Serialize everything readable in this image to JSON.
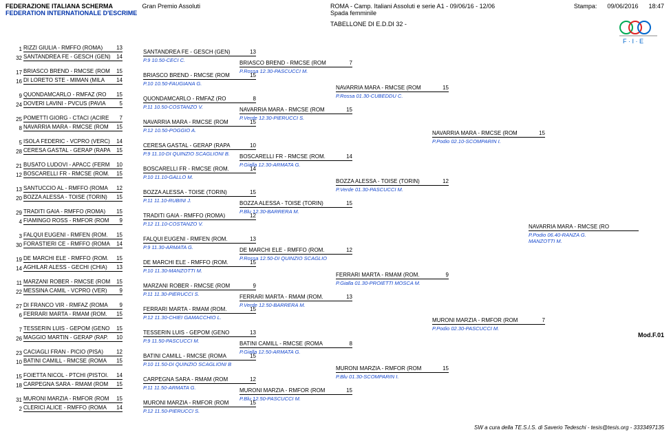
{
  "header": {
    "fed_it": "FEDERAZIONE ITALIANA SCHERMA",
    "gp": "Gran Premio Assoluti",
    "event": "ROMA - Camp. Italiani Assoluti e serie A1 - 09/06/16 - 12/06",
    "stampa_label": "Stampa:",
    "stampa_date": "09/06/2016",
    "stampa_time": "18:47",
    "fed_en": "FEDERATION INTERNATIONALE D'ESCRIME",
    "weapon": "Spada femminile",
    "tableau": "TABELLONE DI E.D.DI 32 -"
  },
  "layout": {
    "c0_gap": 12,
    "c0_block": 34,
    "c1_start": 6,
    "c1_block": 68,
    "c2_start": 22,
    "c2_block": 136,
    "c3_start": 58,
    "c3_block": 272,
    "c4_start": 124
  },
  "col0": [
    {
      "s1": "1",
      "n1": "RIZZI GIULIA - RMFFO (ROMA)",
      "v1": "13",
      "s2": "32",
      "n2": "SANTANDREA FE - GESCH (GEN)",
      "v2": "14"
    },
    {
      "s1": "17",
      "n1": "BRIASCO BREND - RMCSE (ROM",
      "v1": "15",
      "s2": "16",
      "n2": "DI LORETO STE - MIMAN (MILA",
      "v2": "14"
    },
    {
      "s1": "9",
      "n1": "QUONDAMCARLO - RMFAZ (RO",
      "v1": "15",
      "s2": "24",
      "n2": "DOVERI LAVINI - PVCUS (PAVIA",
      "v2": "5"
    },
    {
      "s1": "25",
      "n1": "POMETTI GIORG - CTACI (ACIRE",
      "v1": "7",
      "s2": "8",
      "n2": "NAVARRIA MARA - RMCSE (ROM",
      "v2": "15"
    },
    {
      "s1": "5",
      "n1": "ISOLA FEDERIC - VCPRO (VERC)",
      "v1": "14",
      "s2": "28",
      "n2": "CERESA GASTAL - GERAP (RAPA",
      "v2": "15"
    },
    {
      "s1": "21",
      "n1": "BUSATO LUDOVI - APACC (FERM",
      "v1": "10",
      "s2": "12",
      "n2": "BOSCARELLI FR - RMCSE (ROM.",
      "v2": "15"
    },
    {
      "s1": "13",
      "n1": "SANTUCCIO AL - RMFFO (ROMA",
      "v1": "12",
      "s2": "20",
      "n2": "BOZZA ALESSA - TOISE (TORIN)",
      "v2": "15"
    },
    {
      "s1": "29",
      "n1": "TRADITI GAIA - RMFFO (ROMA)",
      "v1": "15",
      "s2": "4",
      "n2": "FIAMINGO ROSS - RMFOR (ROM",
      "v2": "9"
    },
    {
      "s1": "3",
      "n1": "FALQUI EUGENI - RMFEN (ROM.",
      "v1": "15",
      "s2": "30",
      "n2": "FORASTIERI CE - RMFFO (ROMA",
      "v2": "14"
    },
    {
      "s1": "19",
      "n1": "DE MARCHI ELE - RMFFO (ROM.",
      "v1": "15",
      "s2": "14",
      "n2": "AGHILAR ALESS - GECHI (CHIA)",
      "v2": "13"
    },
    {
      "s1": "11",
      "n1": "MARZANI ROBER - RMCSE (ROM",
      "v1": "15",
      "s2": "22",
      "n2": "MESSINA CAMIL - VCPRO (VER)",
      "v2": "9"
    },
    {
      "s1": "27",
      "n1": "DI FRANCO VIR - RMFAZ (ROMA",
      "v1": "9",
      "s2": "6",
      "n2": "FERRARI MARTA - RMAM (ROM.",
      "v2": "15"
    },
    {
      "s1": "7",
      "n1": "TESSERIN LUIS - GEPOM (GENO",
      "v1": "15",
      "s2": "26",
      "n2": "MAGGIO MARTIN - GERAP (RAP.",
      "v2": "10"
    },
    {
      "s1": "23",
      "n1": "CACIAGLI FRAN - PICIO (PISA)",
      "v1": "12",
      "s2": "10",
      "n2": "BATINI CAMILL - RMCSE (ROMA",
      "v2": "15"
    },
    {
      "s1": "15",
      "n1": "FOIETTA NICOL - PTCHI (PISTOI.",
      "v1": "14",
      "s2": "18",
      "n2": "CARPEGNA SARA - RMAM (ROM",
      "v2": "15"
    },
    {
      "s1": "31",
      "n1": "MURONI MARZIA - RMFOR (ROM",
      "v1": "15",
      "s2": "2",
      "n2": "CLERICI ALICE - RMFFO (ROMA",
      "v2": "14"
    }
  ],
  "col1": [
    {
      "n": "SANTANDREA FE - GESCH (GEN)",
      "v": "13",
      "r": "P.9 10.50-CECI C."
    },
    {
      "n": "BRIASCO BREND - RMCSE (ROM",
      "v": "15",
      "r": "P.10 10.50-FAUGIANA G."
    },
    {
      "n": "QUONDAMCARLO - RMFAZ (RO",
      "v": "8",
      "r": "P.11 10.50-COSTANZO V."
    },
    {
      "n": "NAVARRIA MARA - RMCSE (ROM",
      "v": "15",
      "r": "P.12 10.50-POGGIO A."
    },
    {
      "n": "CERESA GASTAL - GERAP (RAPA",
      "v": "10",
      "r": "P.9 11.10-DI QUINZIO SCAGLIONI B."
    },
    {
      "n": "BOSCARELLI FR - RMCSE (ROM.",
      "v": "14",
      "r": "P.10 11.10-GALLO M."
    },
    {
      "n": "BOZZA ALESSA - TOISE (TORIN)",
      "v": "15",
      "r": "P.11 11.10-RUBINI J."
    },
    {
      "n": "TRADITI GAIA - RMFFO (ROMA)",
      "v": "12",
      "r": "P.12 11.10-COSTANZO V."
    },
    {
      "n": "FALQUI EUGENI - RMFEN (ROM.",
      "v": "13",
      "r": "P.9 11.30-ARMATA G."
    },
    {
      "n": "DE MARCHI ELE - RMFFO (ROM.",
      "v": "15",
      "r": "P.10 11.30-MANZOTTI M."
    },
    {
      "n": "MARZANI ROBER - RMCSE (ROM",
      "v": "9",
      "r": "P.11 11.30-PIERUCCI S."
    },
    {
      "n": "FERRARI MARTA - RMAM (ROM.",
      "v": "15",
      "r": "P.12 11.30-CHIEI GAMACCHIO L."
    },
    {
      "n": "TESSERIN LUIS - GEPOM (GENO",
      "v": "13",
      "r": "P.9 11.50-PASCUCCI M."
    },
    {
      "n": "BATINI CAMILL - RMCSE (ROMA",
      "v": "15",
      "r": "P.10 11.50-DI QUINZIO SCAGLIONI B"
    },
    {
      "n": "CARPEGNA SARA - RMAM (ROM",
      "v": "12",
      "r": "P.11 11.50-ARMATA G."
    },
    {
      "n": "MURONI MARZIA - RMFOR (ROM",
      "v": "15",
      "r": "P.12 11.50-PIERUCCI S."
    }
  ],
  "col2": [
    {
      "n": "BRIASCO BREND - RMCSE (ROM",
      "v": "7",
      "r": "P.Rossa 12.30-PASCUCCI M."
    },
    {
      "n": "NAVARRIA MARA - RMCSE (ROM",
      "v": "15",
      "r": "P.Verde 12.30-PIERUCCI S."
    },
    {
      "n": "BOSCARELLI FR - RMCSE (ROM.",
      "v": "14",
      "r": "P.Gialla 12.30-ARMATA G."
    },
    {
      "n": "BOZZA ALESSA - TOISE (TORIN)",
      "v": "15",
      "r": "P.Blu 12.30-BARRERA M."
    },
    {
      "n": "DE MARCHI ELE - RMFFO (ROM.",
      "v": "12",
      "r": "P.Rossa 12.50-DI QUINZIO SCAGLIO"
    },
    {
      "n": "FERRARI MARTA - RMAM (ROM.",
      "v": "13",
      "r": "P.Verde 12.50-BARRERA M."
    },
    {
      "n": "BATINI CAMILL - RMCSE (ROMA",
      "v": "8",
      "r": "P.Gialla 12.50-ARMATA G."
    },
    {
      "n": "MURONI MARZIA - RMFOR (ROM",
      "v": "15",
      "r": "P.Blu 12.50-PASCUCCI M."
    }
  ],
  "col3": [
    {
      "n": "NAVARRIA MARA - RMCSE (ROM",
      "v": "15",
      "r": "P.Rossa 01.30-CUBEDDU C."
    },
    {
      "n": "BOZZA ALESSA - TOISE (TORIN)",
      "v": "12",
      "r": "P.Verde 01.30-PASCUCCI M."
    },
    {
      "n": "FERRARI MARTA - RMAM (ROM.",
      "v": "9",
      "r": "P.Gialla 01.30-PROIETTI MOSCA M."
    },
    {
      "n": "MURONI MARZIA - RMFOR (ROM",
      "v": "15",
      "r": "P.Blu 01.30-SCOMPARIN I."
    }
  ],
  "col4": [
    {
      "n": "NAVARRIA MARA - RMCSE (ROM",
      "v": "15",
      "r": "P.Podio 02.10-SCOMPARIN I."
    },
    {
      "n": "MURONI MARZIA - RMFOR (ROM",
      "v": "7",
      "r": "P.Podio 02.30-PASCUCCI M."
    }
  ],
  "col5": [
    {
      "n": "NAVARRIA MARA - RMCSE (RO",
      "r": "P.Podio 06.40-RANZA G.",
      "r2": "MANZOTTI M."
    }
  ],
  "modf": "Mod.F.01",
  "footer": "SW a cura della TE.S.I.S. di Saverio Tedeschi - tesis@tesis.org - 3333497135"
}
